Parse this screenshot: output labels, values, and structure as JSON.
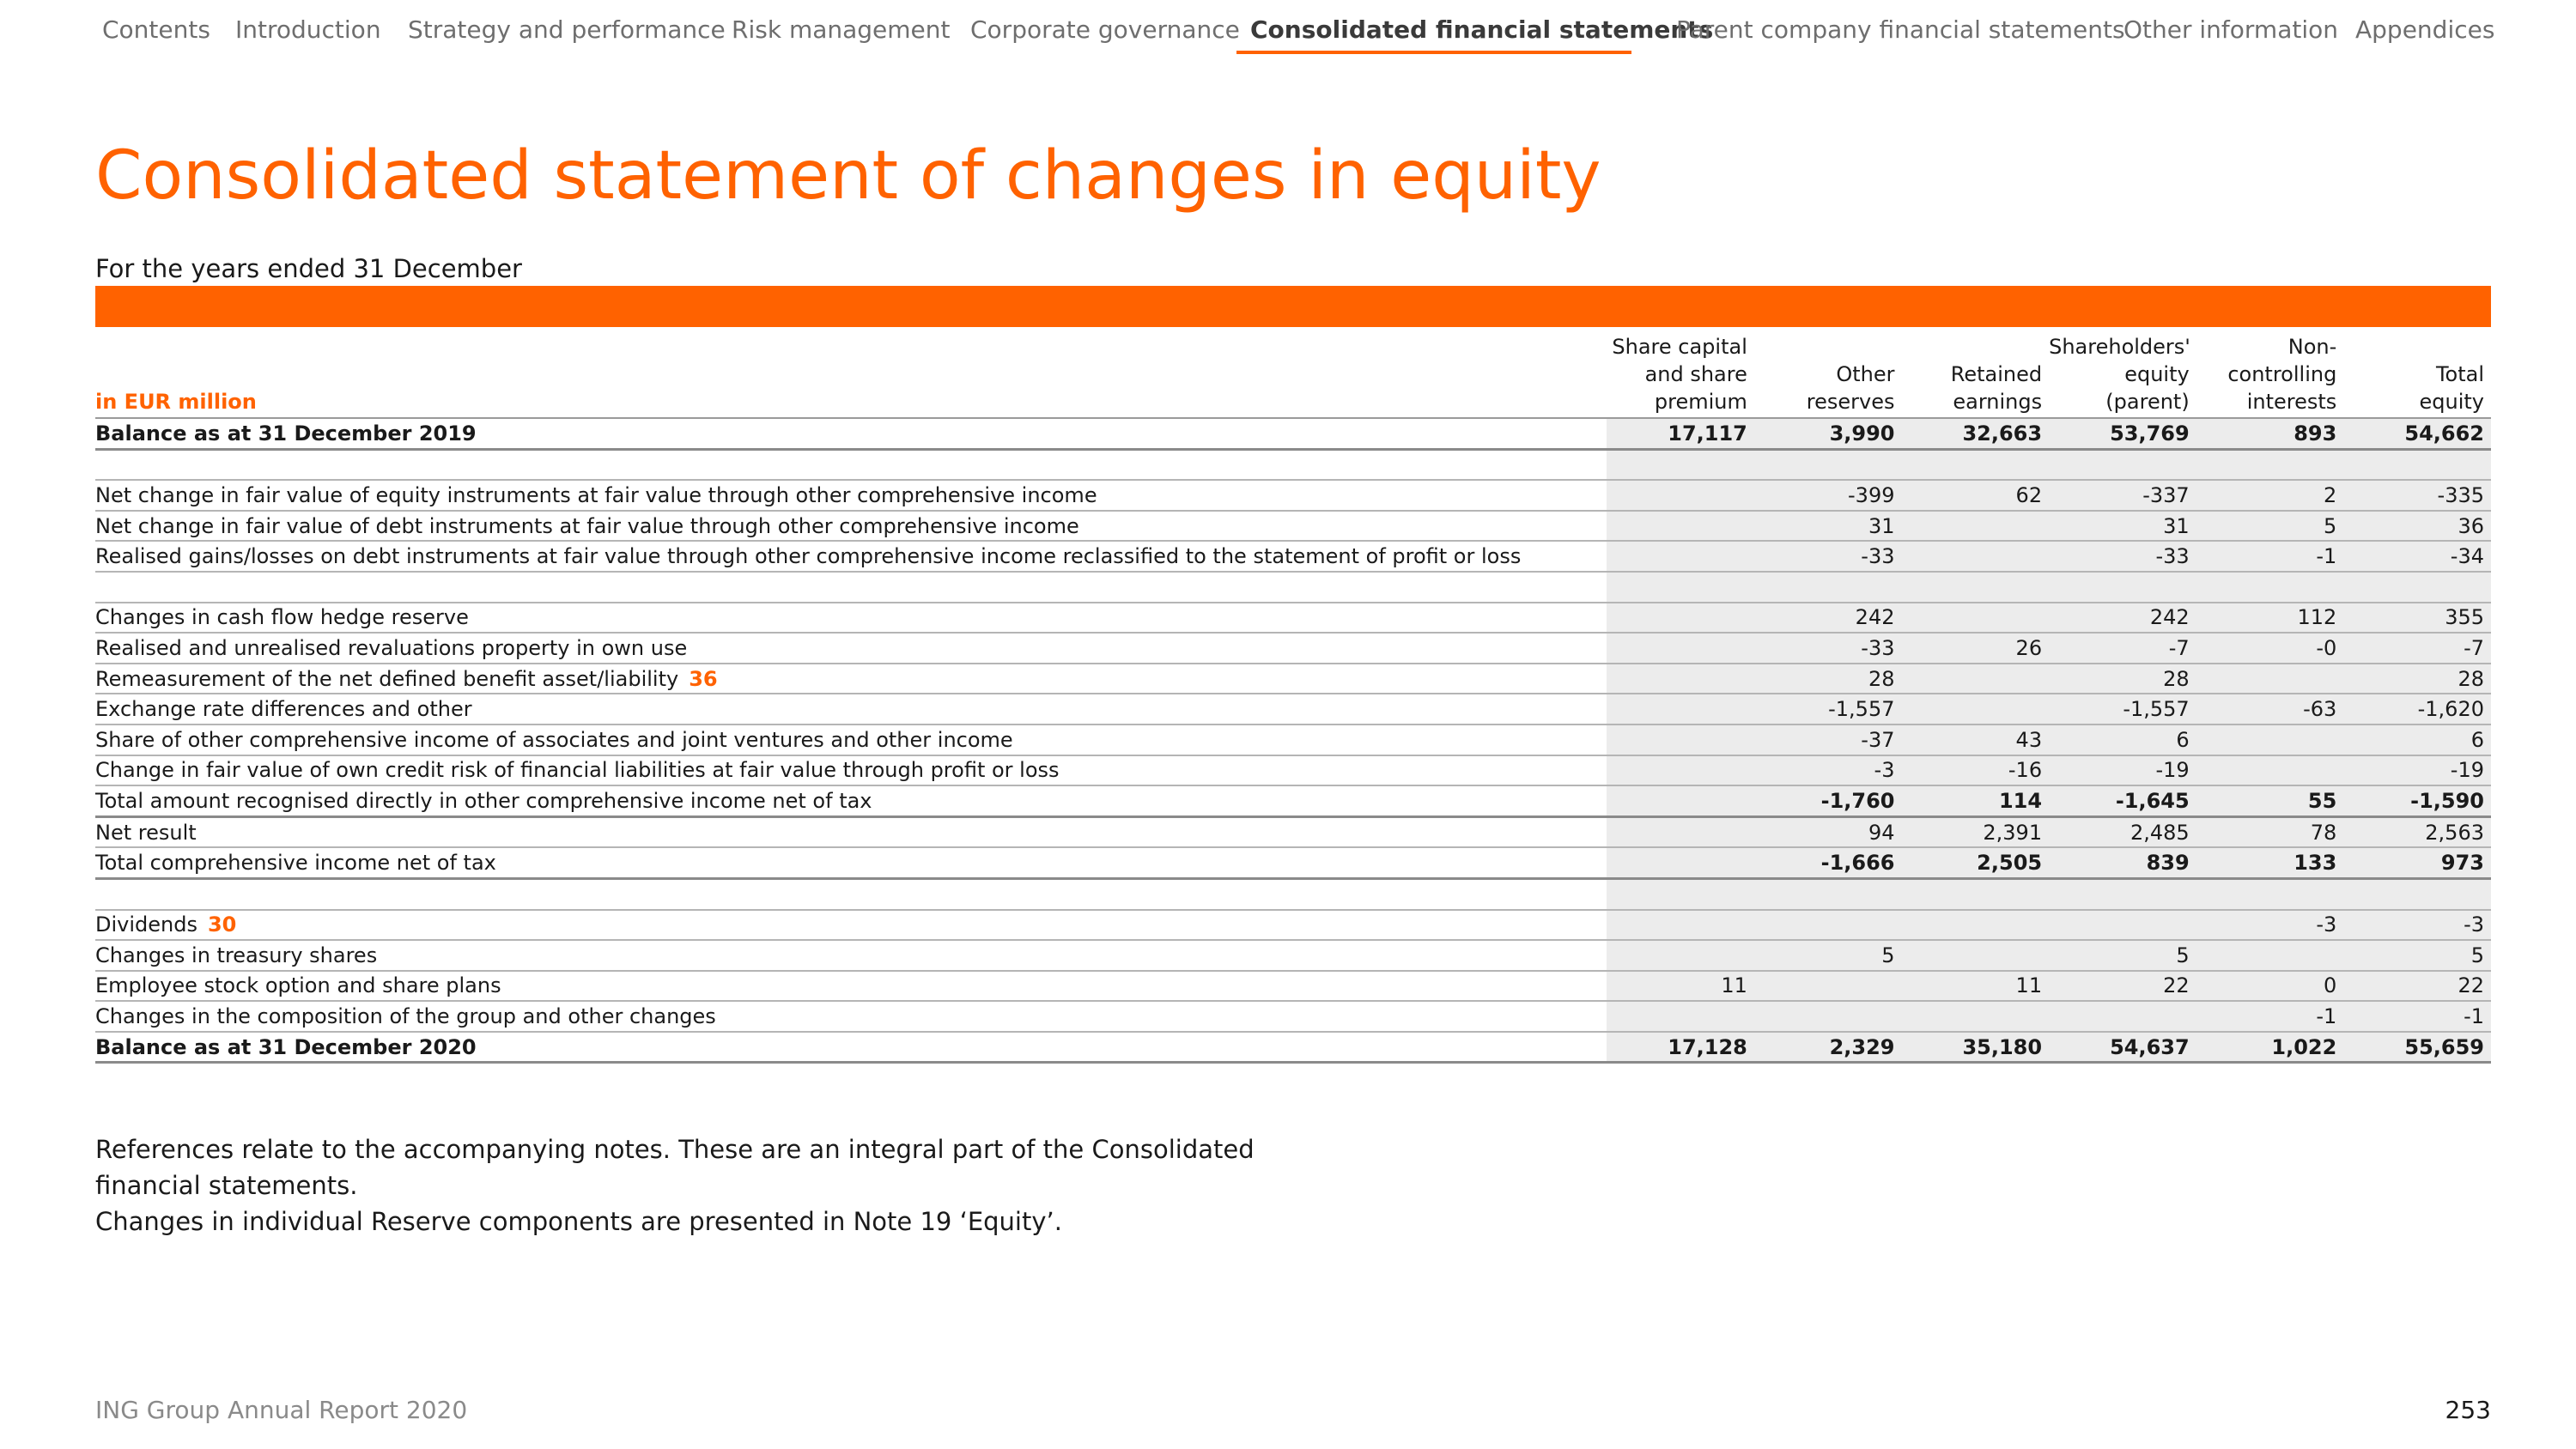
{
  "nav": {
    "items": [
      {
        "label": "Contents"
      },
      {
        "label": "Introduction"
      },
      {
        "label": "Strategy and performance"
      },
      {
        "label": "Risk management"
      },
      {
        "label": "Corporate governance"
      },
      {
        "label": "Consolidated financial statements",
        "active": true
      },
      {
        "label": "Parent company financial statements"
      },
      {
        "label": "Other information"
      },
      {
        "label": "Appendices"
      }
    ]
  },
  "title": "Consolidated statement of changes in equity",
  "subtitle": "For the years ended 31 December",
  "accent_color": "#ff6200",
  "table": {
    "unit_label": "in EUR million",
    "columns": [
      "Share capital\nand share\npremium",
      "Other\nreserves",
      "Retained\nearnings",
      "Shareholders'\nequity (parent)",
      "Non-\ncontrolling\ninterests",
      "Total\nequity"
    ],
    "rows": [
      {
        "label": "Balance as at 31 December 2019",
        "values": [
          "17,117",
          "3,990",
          "32,663",
          "53,769",
          "893",
          "54,662"
        ],
        "bold": true
      },
      {
        "label": "",
        "values": [
          "",
          "",
          "",
          "",
          "",
          ""
        ]
      },
      {
        "label": "Net change in fair value of equity instruments at fair value through other comprehensive income",
        "values": [
          "",
          "-399",
          "62",
          "-337",
          "2",
          "-335"
        ]
      },
      {
        "label": "Net change in fair value of debt instruments at fair value through other comprehensive income",
        "values": [
          "",
          "31",
          "",
          "31",
          "5",
          "36"
        ]
      },
      {
        "label": "Realised gains/losses on debt instruments at fair value through other comprehensive income reclassified to the statement of profit or loss",
        "values": [
          "",
          "-33",
          "",
          "-33",
          "-1",
          "-34"
        ]
      },
      {
        "label": "",
        "values": [
          "",
          "",
          "",
          "",
          "",
          ""
        ]
      },
      {
        "label": "Changes in cash flow hedge reserve",
        "values": [
          "",
          "242",
          "",
          "242",
          "112",
          "355"
        ]
      },
      {
        "label": "Realised and unrealised revaluations property in own use",
        "values": [
          "",
          "-33",
          "26",
          "-7",
          "-0",
          "-7"
        ]
      },
      {
        "label": "Remeasurement of the net defined benefit asset/liability",
        "ref": "36",
        "values": [
          "",
          "28",
          "",
          "28",
          "",
          "28"
        ]
      },
      {
        "label": "Exchange rate differences and other",
        "values": [
          "",
          "-1,557",
          "",
          "-1,557",
          "-63",
          "-1,620"
        ]
      },
      {
        "label": "Share of other comprehensive income of associates and joint ventures and other income",
        "values": [
          "",
          "-37",
          "43",
          "6",
          "",
          "6"
        ]
      },
      {
        "label": "Change in fair value of own credit risk of financial liabilities at fair value through profit or loss",
        "values": [
          "",
          "-3",
          "-16",
          "-19",
          "",
          "-19"
        ]
      },
      {
        "label": "Total amount recognised directly in other comprehensive income net of tax",
        "values": [
          "",
          "-1,760",
          "114",
          "-1,645",
          "55",
          "-1,590"
        ],
        "bold_values": true
      },
      {
        "label": "Net result",
        "values": [
          "",
          "94",
          "2,391",
          "2,485",
          "78",
          "2,563"
        ]
      },
      {
        "label": "Total comprehensive income net of tax",
        "values": [
          "",
          "-1,666",
          "2,505",
          "839",
          "133",
          "973"
        ],
        "bold_values": true
      },
      {
        "label": "",
        "values": [
          "",
          "",
          "",
          "",
          "",
          ""
        ]
      },
      {
        "label": "Dividends",
        "ref": "30",
        "values": [
          "",
          "",
          "",
          "",
          "-3",
          "-3"
        ]
      },
      {
        "label": "Changes in treasury shares",
        "values": [
          "",
          "5",
          "",
          "5",
          "",
          "5"
        ]
      },
      {
        "label": "Employee stock option and share plans",
        "values": [
          "11",
          "",
          "11",
          "22",
          "0",
          "22"
        ]
      },
      {
        "label": "Changes in the composition of the group and other changes",
        "values": [
          "",
          "",
          "",
          "",
          "-1",
          "-1"
        ]
      },
      {
        "label": "Balance as at 31 December 2020",
        "values": [
          "17,128",
          "2,329",
          "35,180",
          "54,637",
          "1,022",
          "55,659"
        ],
        "bold": true
      }
    ]
  },
  "footnotes": [
    "References relate to the accompanying notes. These are an integral part of the Consolidated financial statements.",
    "Changes in individual Reserve components are presented in Note 19 ‘Equity’."
  ],
  "footer": {
    "report_name": "ING Group Annual Report 2020",
    "page_number": "253"
  }
}
